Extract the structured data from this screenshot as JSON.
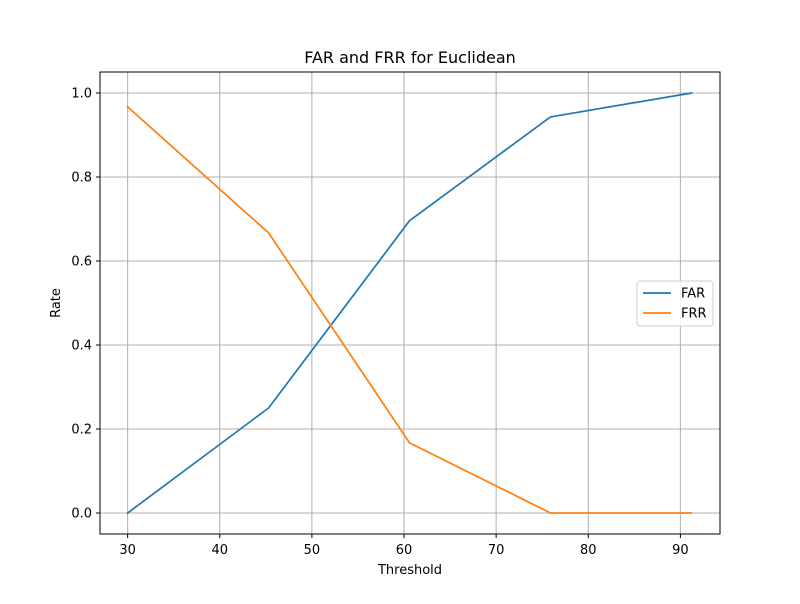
{
  "chart_data": {
    "type": "line",
    "title": "FAR and FRR for Euclidean",
    "xlabel": "Threshold",
    "ylabel": "Rate",
    "xlim": [
      27.0,
      94.3
    ],
    "ylim": [
      -0.05,
      1.05
    ],
    "xticks": [
      30,
      40,
      50,
      60,
      70,
      80,
      90
    ],
    "yticks": [
      0.0,
      0.2,
      0.4,
      0.6,
      0.8,
      1.0
    ],
    "xtick_labels": [
      "30",
      "40",
      "50",
      "60",
      "70",
      "80",
      "90"
    ],
    "ytick_labels": [
      "0.0",
      "0.2",
      "0.4",
      "0.6",
      "0.8",
      "1.0"
    ],
    "grid": true,
    "legend_position": "center-right",
    "series": [
      {
        "name": "FAR",
        "color": "#1f77b4",
        "x": [
          30.0,
          45.3,
          60.6,
          75.9,
          91.2
        ],
        "y": [
          0.0,
          0.25,
          0.696,
          0.943,
          1.0
        ]
      },
      {
        "name": "FRR",
        "color": "#ff7f0e",
        "x": [
          30.0,
          45.3,
          60.6,
          75.9,
          91.2
        ],
        "y": [
          0.967,
          0.667,
          0.167,
          0.0,
          0.0
        ]
      }
    ]
  }
}
